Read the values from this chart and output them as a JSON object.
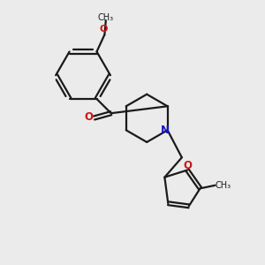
{
  "bg_color": "#ebebeb",
  "bond_color": "#1a1a1a",
  "N_color": "#1515cc",
  "O_color": "#cc1515",
  "text_color": "#1a1a1a",
  "figsize": [
    3.0,
    3.0
  ],
  "dpi": 100,
  "xlim": [
    0,
    10
  ],
  "ylim": [
    0,
    10
  ]
}
